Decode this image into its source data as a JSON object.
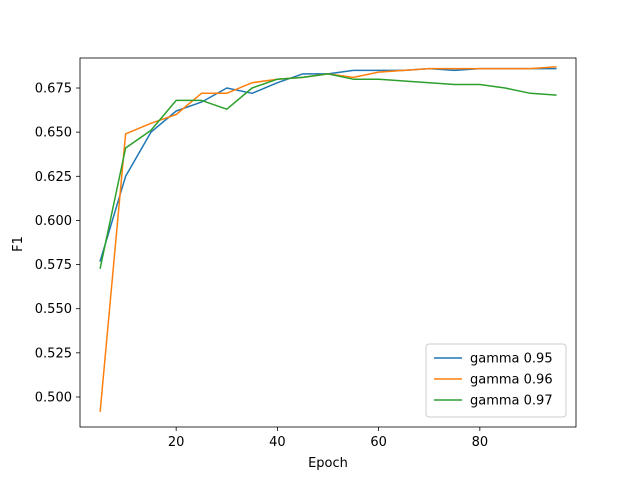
{
  "chart_data": {
    "type": "line",
    "title": "",
    "xlabel": "Epoch",
    "ylabel": "F1",
    "xlim": [
      1,
      99
    ],
    "ylim": [
      0.483,
      0.692
    ],
    "xticks": [
      20,
      40,
      60,
      80
    ],
    "yticks": [
      0.5,
      0.525,
      0.55,
      0.575,
      0.6,
      0.625,
      0.65,
      0.675
    ],
    "grid": false,
    "legend_position": "lower-right",
    "x": [
      5,
      10,
      15,
      20,
      25,
      30,
      35,
      40,
      45,
      50,
      55,
      60,
      65,
      70,
      75,
      80,
      85,
      90,
      95
    ],
    "series": [
      {
        "name": "gamma 0.95",
        "color": "#1f77b4",
        "values": [
          0.577,
          0.625,
          0.65,
          0.662,
          0.667,
          0.675,
          0.672,
          0.678,
          0.683,
          0.683,
          0.685,
          0.685,
          0.685,
          0.686,
          0.685,
          0.686,
          0.686,
          0.686,
          0.686
        ]
      },
      {
        "name": "gamma 0.96",
        "color": "#ff7f0e",
        "values": [
          0.492,
          0.649,
          0.655,
          0.66,
          0.672,
          0.672,
          0.678,
          0.68,
          0.681,
          0.683,
          0.681,
          0.684,
          0.685,
          0.686,
          0.686,
          0.686,
          0.686,
          0.686,
          0.687
        ]
      },
      {
        "name": "gamma 0.97",
        "color": "#2ca02c",
        "values": [
          0.573,
          0.641,
          0.651,
          0.668,
          0.668,
          0.663,
          0.675,
          0.68,
          0.681,
          0.683,
          0.68,
          0.68,
          0.679,
          0.678,
          0.677,
          0.677,
          0.675,
          0.672,
          0.671
        ]
      }
    ]
  }
}
